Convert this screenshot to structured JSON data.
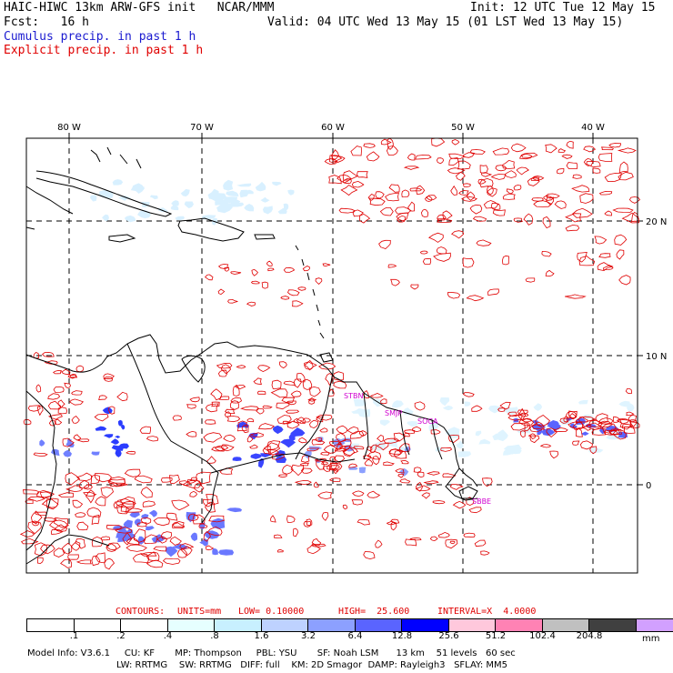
{
  "header": {
    "title": "HAIC-HIWC 13km ARW-GFS init   NCAR/MMM",
    "init": "Init: 12 UTC Tue 12 May 15",
    "fcst": "Fcst:   16 h",
    "valid": "Valid: 04 UTC Wed 13 May 15 (01 LST Wed 13 May 15)",
    "cumulus_label": "Cumulus precip. in past 1 h",
    "explicit_label": "Explicit precip. in past 1 h"
  },
  "map": {
    "lon_labels": [
      "80 W",
      "70 W",
      "60 W",
      "50 W",
      "40 W"
    ],
    "lat_labels": [
      "20 N",
      "10 N",
      "0"
    ],
    "stations": [
      "STBN",
      "SMJP",
      "SOCA",
      "SBBE"
    ],
    "colors": {
      "cumulus": "#1e3cff",
      "explicit": "#e00000",
      "coast": "#000000",
      "grid": "#000000"
    }
  },
  "contour_info": {
    "contours": "CONTOURS:",
    "units": "UNITS=mm",
    "low": "LOW= 0.10000",
    "high": "HIGH=  25.600",
    "interval": "INTERVAL=X  4.0000"
  },
  "colorbar": {
    "colors": [
      "#ffffff",
      "#ffffff",
      "#ffffff",
      "#e6ffff",
      "#c8f0ff",
      "#bed2ff",
      "#8ca0ff",
      "#5a64ff",
      "#0000ff",
      "#ffc8dc",
      "#ff82b4",
      "#c0c0c0",
      "#404040",
      "#d2a0ff"
    ],
    "labels": [
      ".1",
      ".2",
      ".4",
      ".8",
      "1.6",
      "3.2",
      "6.4",
      "12.8",
      "25.6",
      "51.2",
      "102.4",
      "204.8"
    ],
    "unit": "mm"
  },
  "model_info": {
    "line1": "Model Info: V3.6.1     CU: KF       MP: Thompson     PBL: YSU       SF: Noah LSM      13 km    51 levels   60 sec",
    "line2": "LW: RRTMG    SW: RRTMG   DIFF: full    KM: 2D Smagor  DAMP: Rayleigh3   SFLAY: MM5"
  }
}
